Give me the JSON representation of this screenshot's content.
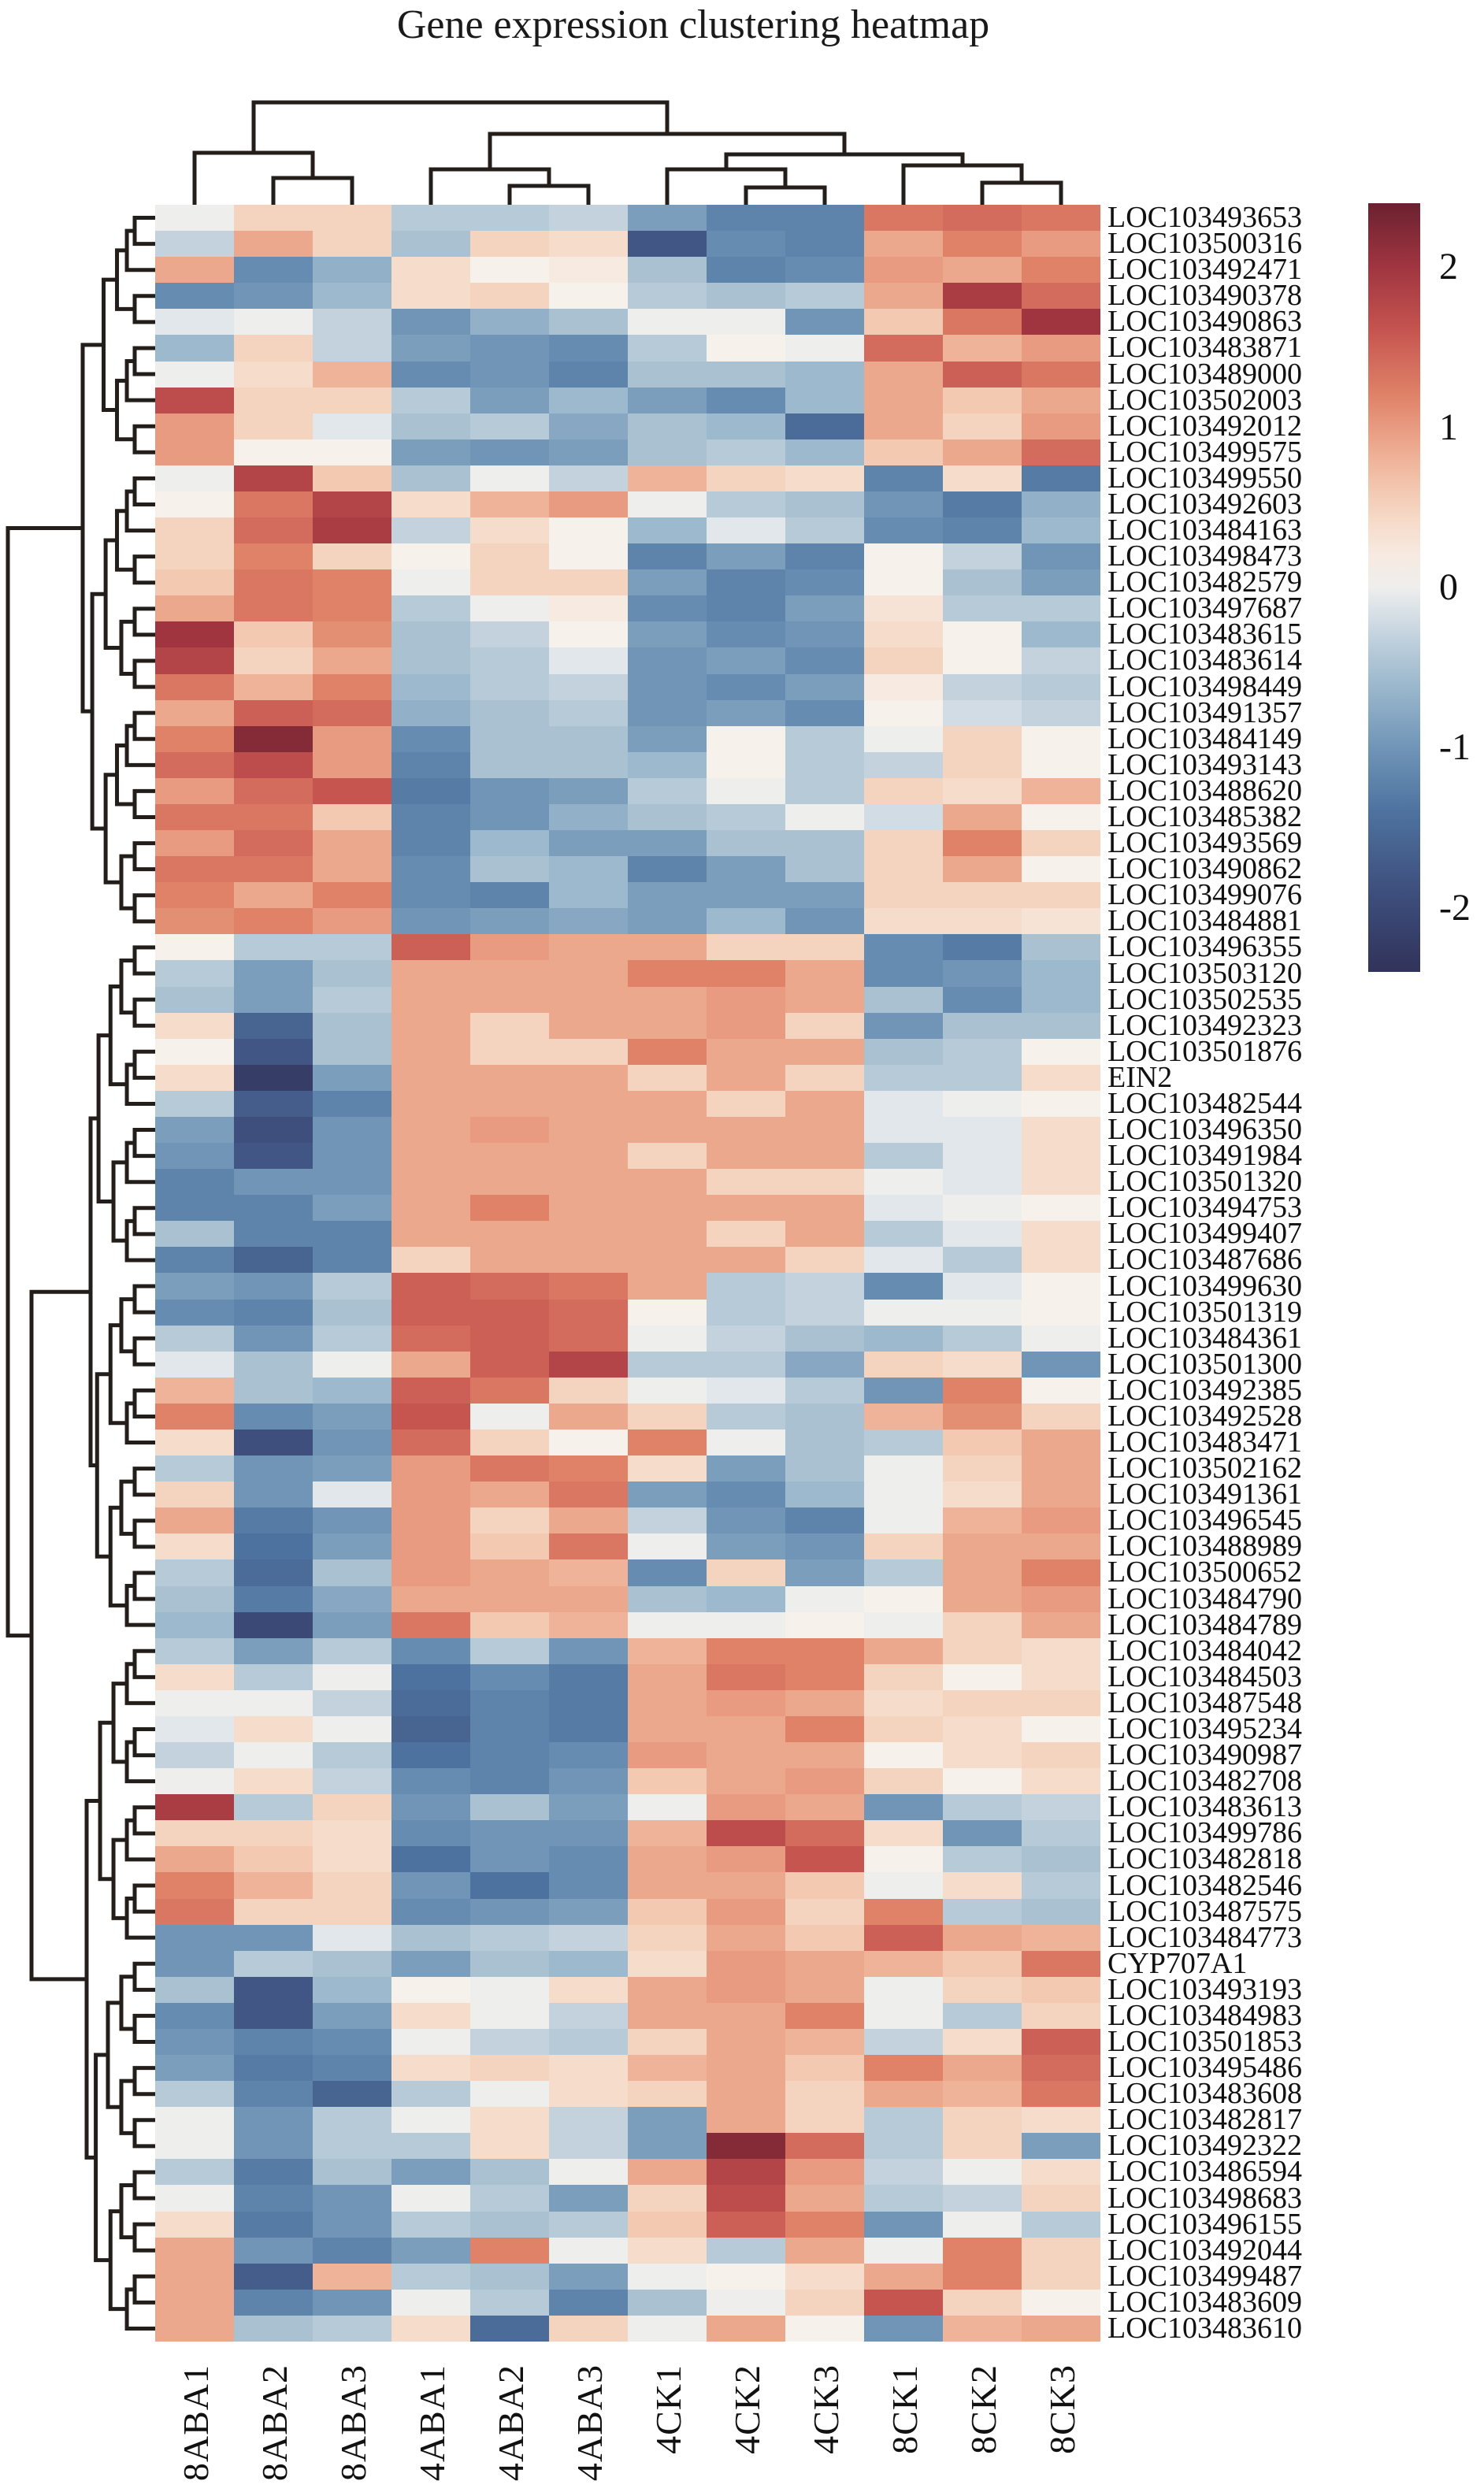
{
  "chart_data": {
    "type": "heatmap",
    "title": "Gene expression clustering heatmap",
    "legend_position": "right",
    "columns": [
      "8ABA1",
      "8ABA2",
      "8ABA3",
      "4ABA1",
      "4ABA2",
      "4ABA3",
      "4CK1",
      "4CK2",
      "4CK3",
      "8CK1",
      "8CK2",
      "8CK3"
    ],
    "rows": [
      "LOC103493653",
      "LOC103500316",
      "LOC103492471",
      "LOC103490378",
      "LOC103490863",
      "LOC103483871",
      "LOC103489000",
      "LOC103502003",
      "LOC103492012",
      "LOC103499575",
      "LOC103499550",
      "LOC103492603",
      "LOC103484163",
      "LOC103498473",
      "LOC103482579",
      "LOC103497687",
      "LOC103483615",
      "LOC103483614",
      "LOC103498449",
      "LOC103491357",
      "LOC103484149",
      "LOC103493143",
      "LOC103488620",
      "LOC103485382",
      "LOC103493569",
      "LOC103490862",
      "LOC103499076",
      "LOC103484881",
      "LOC103496355",
      "LOC103503120",
      "LOC103502535",
      "LOC103492323",
      "LOC103501876",
      "EIN2",
      "LOC103482544",
      "LOC103496350",
      "LOC103491984",
      "LOC103501320",
      "LOC103494753",
      "LOC103499407",
      "LOC103487686",
      "LOC103499630",
      "LOC103501319",
      "LOC103484361",
      "LOC103501300",
      "LOC103492385",
      "LOC103492528",
      "LOC103483471",
      "LOC103502162",
      "LOC103491361",
      "LOC103496545",
      "LOC103488989",
      "LOC103500652",
      "LOC103484790",
      "LOC103484789",
      "LOC103484042",
      "LOC103484503",
      "LOC103487548",
      "LOC103495234",
      "LOC103490987",
      "LOC103482708",
      "LOC103483613",
      "LOC103499786",
      "LOC103482818",
      "LOC103482546",
      "LOC103487575",
      "LOC103484773",
      "CYP707A1",
      "LOC103493193",
      "LOC103484983",
      "LOC103501853",
      "LOC103495486",
      "LOC103483608",
      "LOC103482817",
      "LOC103492322",
      "LOC103486594",
      "LOC103498683",
      "LOC103496155",
      "LOC103492044",
      "LOC103499487",
      "LOC103483609",
      "LOC103483610"
    ],
    "values": [
      [
        0.0,
        0.5,
        0.5,
        -0.4,
        -0.4,
        -0.3,
        -0.9,
        -1.2,
        -1.2,
        1.3,
        1.4,
        1.3
      ],
      [
        -0.3,
        0.9,
        0.5,
        -0.5,
        0.5,
        0.4,
        -1.8,
        -1.1,
        -1.2,
        0.9,
        1.2,
        1.0
      ],
      [
        0.9,
        -1.1,
        -0.7,
        0.4,
        0.1,
        0.2,
        -0.5,
        -1.2,
        -1.1,
        1.0,
        0.9,
        1.2
      ],
      [
        -1.1,
        -1.0,
        -0.6,
        0.4,
        0.5,
        0.1,
        -0.4,
        -0.5,
        -0.4,
        0.9,
        1.9,
        1.4
      ],
      [
        -0.1,
        0.0,
        -0.3,
        -1.0,
        -0.7,
        -0.5,
        0.0,
        0.0,
        -1.0,
        0.6,
        1.3,
        2.0
      ],
      [
        -0.6,
        0.5,
        -0.3,
        -0.9,
        -1.0,
        -1.1,
        -0.4,
        0.1,
        0.0,
        1.4,
        0.8,
        1.0
      ],
      [
        0.0,
        0.4,
        0.8,
        -1.1,
        -1.0,
        -1.2,
        -0.5,
        -0.5,
        -0.6,
        0.9,
        1.5,
        1.3
      ],
      [
        1.7,
        0.5,
        0.5,
        -0.4,
        -0.9,
        -0.6,
        -0.9,
        -1.1,
        -0.6,
        0.9,
        0.6,
        0.9
      ],
      [
        1.0,
        0.5,
        -0.1,
        -0.5,
        -0.4,
        -0.8,
        -0.5,
        -0.6,
        -1.5,
        0.9,
        0.5,
        1.0
      ],
      [
        1.0,
        0.1,
        0.1,
        -0.9,
        -1.0,
        -0.9,
        -0.5,
        -0.4,
        -0.6,
        0.6,
        0.9,
        1.4
      ],
      [
        0.0,
        1.8,
        0.6,
        -0.5,
        0.0,
        -0.3,
        0.8,
        0.5,
        0.4,
        -1.2,
        0.4,
        -1.3
      ],
      [
        0.1,
        1.3,
        1.8,
        0.4,
        0.8,
        1.0,
        0.0,
        -0.4,
        -0.5,
        -1.0,
        -1.3,
        -0.7
      ],
      [
        0.5,
        1.4,
        1.9,
        -0.3,
        0.4,
        0.1,
        -0.6,
        -0.1,
        -0.4,
        -1.1,
        -1.2,
        -0.6
      ],
      [
        0.5,
        1.2,
        0.5,
        0.1,
        0.5,
        0.1,
        -1.2,
        -0.9,
        -1.2,
        0.1,
        -0.3,
        -1.0
      ],
      [
        0.6,
        1.3,
        1.2,
        0.0,
        0.5,
        0.5,
        -0.9,
        -1.2,
        -1.1,
        0.1,
        -0.5,
        -0.9
      ],
      [
        0.9,
        1.3,
        1.2,
        -0.4,
        0.0,
        0.2,
        -1.1,
        -1.2,
        -0.9,
        0.3,
        -0.4,
        -0.4
      ],
      [
        2.0,
        0.6,
        1.1,
        -0.5,
        -0.3,
        0.1,
        -0.9,
        -1.1,
        -1.0,
        0.4,
        0.1,
        -0.6
      ],
      [
        1.8,
        0.5,
        0.9,
        -0.5,
        -0.4,
        -0.1,
        -1.0,
        -0.9,
        -1.1,
        0.5,
        0.1,
        -0.3
      ],
      [
        1.3,
        0.8,
        1.2,
        -0.6,
        -0.4,
        -0.3,
        -1.0,
        -1.1,
        -0.9,
        0.2,
        -0.3,
        -0.4
      ],
      [
        0.9,
        1.5,
        1.4,
        -0.7,
        -0.5,
        -0.4,
        -1.0,
        -0.9,
        -1.1,
        0.1,
        -0.2,
        -0.3
      ],
      [
        1.2,
        2.2,
        1.0,
        -1.1,
        -0.5,
        -0.5,
        -0.9,
        0.1,
        -0.4,
        0.0,
        0.5,
        0.1
      ],
      [
        1.4,
        1.7,
        1.0,
        -1.2,
        -0.5,
        -0.5,
        -0.6,
        0.1,
        -0.4,
        -0.3,
        0.5,
        0.1
      ],
      [
        1.0,
        1.4,
        1.6,
        -1.3,
        -1.0,
        -0.9,
        -0.4,
        0.0,
        -0.4,
        0.5,
        0.4,
        0.8
      ],
      [
        1.3,
        1.3,
        0.6,
        -1.2,
        -1.0,
        -0.7,
        -0.5,
        -0.4,
        0.0,
        -0.2,
        0.9,
        0.1
      ],
      [
        1.0,
        1.4,
        0.9,
        -1.2,
        -0.6,
        -0.9,
        -0.9,
        -0.5,
        -0.5,
        0.5,
        1.2,
        0.5
      ],
      [
        1.3,
        1.3,
        0.9,
        -1.1,
        -0.5,
        -0.6,
        -1.2,
        -0.9,
        -0.5,
        0.5,
        0.9,
        0.1
      ],
      [
        1.2,
        0.9,
        1.2,
        -1.1,
        -1.2,
        -0.6,
        -0.9,
        -0.9,
        -0.9,
        0.5,
        0.5,
        0.5
      ],
      [
        1.1,
        1.2,
        1.0,
        -1.0,
        -0.9,
        -0.8,
        -0.9,
        -0.6,
        -1.0,
        0.4,
        0.4,
        0.3
      ],
      [
        0.1,
        -0.4,
        -0.4,
        1.5,
        1.0,
        0.9,
        0.9,
        0.5,
        0.5,
        -1.1,
        -1.3,
        -0.5
      ],
      [
        -0.4,
        -0.9,
        -0.5,
        0.9,
        0.9,
        0.9,
        1.2,
        1.2,
        0.9,
        -1.1,
        -1.0,
        -0.6
      ],
      [
        -0.5,
        -0.9,
        -0.4,
        0.9,
        0.9,
        0.9,
        0.9,
        1.0,
        0.9,
        -0.5,
        -1.1,
        -0.6
      ],
      [
        0.4,
        -1.6,
        -0.5,
        0.9,
        0.5,
        0.9,
        0.9,
        1.0,
        0.5,
        -1.0,
        -0.5,
        -0.5
      ],
      [
        0.1,
        -1.8,
        -0.5,
        0.9,
        0.5,
        0.5,
        1.2,
        0.9,
        0.9,
        -0.5,
        -0.4,
        0.1
      ],
      [
        0.4,
        -2.2,
        -0.9,
        0.9,
        0.9,
        0.9,
        0.5,
        0.9,
        0.5,
        -0.4,
        -0.4,
        0.4
      ],
      [
        -0.4,
        -1.7,
        -1.2,
        0.9,
        0.9,
        0.9,
        0.9,
        0.5,
        0.9,
        -0.1,
        0.0,
        0.1
      ],
      [
        -0.9,
        -1.9,
        -1.0,
        0.9,
        1.0,
        0.9,
        0.9,
        0.9,
        0.9,
        -0.1,
        -0.1,
        0.4
      ],
      [
        -1.0,
        -1.8,
        -1.0,
        0.9,
        0.9,
        0.9,
        0.5,
        0.9,
        0.9,
        -0.4,
        -0.1,
        0.4
      ],
      [
        -1.2,
        -1.0,
        -1.0,
        0.9,
        0.9,
        0.9,
        0.9,
        0.5,
        0.5,
        0.0,
        -0.1,
        0.4
      ],
      [
        -1.2,
        -1.2,
        -0.9,
        0.9,
        1.2,
        0.9,
        0.9,
        0.9,
        0.9,
        -0.1,
        0.0,
        0.1
      ],
      [
        -0.5,
        -1.2,
        -1.2,
        0.9,
        0.9,
        0.9,
        0.9,
        0.5,
        0.9,
        -0.4,
        -0.1,
        0.4
      ],
      [
        -1.2,
        -1.6,
        -1.2,
        0.5,
        0.9,
        0.9,
        0.9,
        0.9,
        0.5,
        -0.1,
        -0.4,
        0.4
      ],
      [
        -0.9,
        -1.0,
        -0.4,
        1.5,
        1.4,
        1.3,
        0.9,
        -0.4,
        -0.3,
        -1.1,
        -0.1,
        0.1
      ],
      [
        -1.1,
        -1.2,
        -0.5,
        1.5,
        1.5,
        1.4,
        0.1,
        -0.4,
        -0.3,
        0.0,
        0.0,
        0.1
      ],
      [
        -0.4,
        -1.0,
        -0.4,
        1.4,
        1.5,
        1.4,
        0.0,
        -0.3,
        -0.5,
        -0.6,
        -0.4,
        0.0
      ],
      [
        -0.1,
        -0.5,
        0.0,
        0.9,
        1.5,
        1.8,
        -0.4,
        -0.4,
        -0.8,
        0.5,
        0.4,
        -1.0
      ],
      [
        0.8,
        -0.5,
        -0.6,
        1.5,
        1.3,
        0.5,
        0.0,
        -0.1,
        -0.4,
        -1.0,
        1.2,
        0.1
      ],
      [
        1.2,
        -1.1,
        -0.9,
        1.6,
        0.0,
        0.9,
        0.5,
        -0.4,
        -0.5,
        0.8,
        1.1,
        0.5
      ],
      [
        0.4,
        -1.9,
        -1.0,
        1.4,
        0.5,
        0.1,
        1.2,
        0.0,
        -0.5,
        -0.4,
        0.6,
        0.9
      ],
      [
        -0.4,
        -1.0,
        -0.9,
        1.0,
        1.3,
        1.2,
        0.4,
        -0.9,
        -0.5,
        0.0,
        0.5,
        0.9
      ],
      [
        0.5,
        -1.0,
        -0.1,
        1.0,
        0.9,
        1.3,
        -0.9,
        -1.1,
        -0.6,
        0.0,
        0.4,
        0.9
      ],
      [
        0.9,
        -1.3,
        -1.0,
        1.0,
        0.5,
        0.9,
        -0.3,
        -1.0,
        -1.2,
        0.0,
        0.8,
        1.0
      ],
      [
        0.4,
        -1.4,
        -0.9,
        1.0,
        0.6,
        1.3,
        0.0,
        -0.9,
        -1.0,
        0.5,
        0.9,
        0.9
      ],
      [
        -0.4,
        -1.5,
        -0.5,
        1.0,
        0.9,
        0.8,
        -1.1,
        0.5,
        -0.9,
        -0.4,
        0.9,
        1.2
      ],
      [
        -0.5,
        -1.3,
        -0.8,
        0.9,
        0.9,
        0.9,
        -0.5,
        -0.6,
        0.0,
        0.1,
        0.9,
        1.0
      ],
      [
        -0.6,
        -2.0,
        -0.9,
        1.3,
        0.6,
        0.8,
        0.0,
        0.0,
        0.1,
        0.0,
        0.5,
        0.9
      ],
      [
        -0.4,
        -0.9,
        -0.4,
        -1.1,
        -0.4,
        -1.0,
        0.8,
        1.2,
        1.2,
        0.9,
        0.5,
        0.4
      ],
      [
        0.4,
        -0.4,
        0.0,
        -1.4,
        -1.1,
        -1.3,
        0.9,
        1.3,
        1.2,
        0.5,
        0.1,
        0.4
      ],
      [
        0.0,
        0.0,
        -0.3,
        -1.5,
        -1.2,
        -1.3,
        0.9,
        1.0,
        0.9,
        0.4,
        0.5,
        0.5
      ],
      [
        -0.1,
        0.4,
        0.0,
        -1.6,
        -1.2,
        -1.3,
        0.9,
        0.9,
        1.2,
        0.5,
        0.4,
        0.1
      ],
      [
        -0.3,
        0.0,
        -0.4,
        -1.4,
        -1.2,
        -1.1,
        1.0,
        0.9,
        0.9,
        0.1,
        0.4,
        0.5
      ],
      [
        0.0,
        0.4,
        -0.3,
        -1.1,
        -1.2,
        -1.0,
        0.6,
        0.9,
        1.0,
        0.5,
        0.1,
        0.4
      ],
      [
        1.9,
        -0.4,
        0.5,
        -1.0,
        -0.5,
        -0.9,
        0.0,
        1.0,
        0.9,
        -1.0,
        -0.4,
        -0.3
      ],
      [
        0.5,
        0.5,
        0.4,
        -1.1,
        -1.0,
        -1.0,
        0.8,
        1.7,
        1.4,
        0.4,
        -1.0,
        -0.4
      ],
      [
        0.9,
        0.6,
        0.4,
        -1.4,
        -1.0,
        -1.1,
        0.9,
        1.0,
        1.6,
        0.1,
        -0.4,
        -0.5
      ],
      [
        1.2,
        0.8,
        0.5,
        -1.0,
        -1.4,
        -1.1,
        0.9,
        0.9,
        0.6,
        0.0,
        0.4,
        -0.4
      ],
      [
        1.3,
        0.5,
        0.5,
        -1.1,
        -1.0,
        -0.9,
        0.6,
        1.0,
        0.5,
        1.2,
        -0.4,
        -0.5
      ],
      [
        -1.0,
        -1.0,
        -0.1,
        -0.5,
        -0.4,
        -0.3,
        0.5,
        0.9,
        0.6,
        1.5,
        0.9,
        0.8
      ],
      [
        -1.0,
        -0.4,
        -0.5,
        -0.9,
        -0.5,
        -0.6,
        0.4,
        1.0,
        0.9,
        0.8,
        0.6,
        1.3
      ],
      [
        -0.5,
        -1.8,
        -0.6,
        0.1,
        0.0,
        0.4,
        0.9,
        1.0,
        0.9,
        0.0,
        0.5,
        0.6
      ],
      [
        -1.1,
        -1.8,
        -0.9,
        0.4,
        0.0,
        -0.3,
        0.9,
        0.9,
        1.2,
        0.0,
        -0.4,
        0.5
      ],
      [
        -1.0,
        -1.2,
        -1.1,
        0.0,
        -0.3,
        -0.4,
        0.5,
        0.9,
        0.8,
        -0.3,
        0.4,
        1.5
      ],
      [
        -0.9,
        -1.3,
        -1.2,
        0.4,
        0.5,
        0.4,
        0.8,
        0.9,
        0.6,
        1.2,
        0.9,
        1.4
      ],
      [
        -0.4,
        -1.2,
        -1.6,
        -0.4,
        0.0,
        0.4,
        0.5,
        0.9,
        0.5,
        0.9,
        0.8,
        1.3
      ],
      [
        0.0,
        -1.0,
        -0.4,
        0.0,
        0.4,
        -0.3,
        -0.9,
        0.9,
        0.5,
        -0.4,
        0.5,
        0.4
      ],
      [
        0.0,
        -1.0,
        -0.4,
        -0.4,
        0.4,
        -0.3,
        -0.9,
        2.2,
        1.4,
        -0.4,
        0.5,
        -0.9
      ],
      [
        -0.4,
        -1.3,
        -0.5,
        -0.9,
        -0.5,
        0.0,
        0.9,
        1.8,
        1.0,
        -0.3,
        0.0,
        0.4
      ],
      [
        0.0,
        -1.2,
        -1.0,
        0.0,
        -0.4,
        -0.9,
        0.5,
        1.7,
        0.9,
        -0.4,
        -0.3,
        0.5
      ],
      [
        0.4,
        -1.3,
        -1.0,
        -0.4,
        -0.5,
        -0.4,
        0.6,
        1.5,
        1.2,
        -1.0,
        0.0,
        -0.4
      ],
      [
        0.9,
        -1.0,
        -1.2,
        -0.9,
        1.2,
        0.0,
        0.4,
        -0.4,
        0.9,
        0.0,
        1.2,
        0.5
      ],
      [
        0.9,
        -1.7,
        0.8,
        -0.4,
        -0.5,
        -0.9,
        0.0,
        0.1,
        0.4,
        0.9,
        1.2,
        0.5
      ],
      [
        0.9,
        -1.2,
        -1.0,
        0.0,
        -0.4,
        -1.2,
        -0.5,
        0.0,
        0.5,
        1.6,
        0.5,
        0.1
      ],
      [
        0.9,
        -0.5,
        -0.4,
        0.4,
        -1.5,
        0.5,
        0.0,
        0.9,
        0.1,
        -1.0,
        0.8,
        0.9
      ]
    ],
    "colorbar": {
      "tick_labels": [
        "2",
        "1",
        "0",
        "-1",
        "-2"
      ],
      "tick_values": [
        2,
        1,
        0,
        -1,
        -2
      ],
      "vmin": -2.4,
      "vmax": 2.4
    },
    "palette_anchors": [
      [
        -2.4,
        "#31335a"
      ],
      [
        -1.9,
        "#3e4f7d"
      ],
      [
        -1.4,
        "#4e729f"
      ],
      [
        -1.0,
        "#7095b7"
      ],
      [
        -0.6,
        "#9db9cd"
      ],
      [
        -0.3,
        "#c3d2dd"
      ],
      [
        -0.05,
        "#e9ecee"
      ],
      [
        0.1,
        "#f7f1ec"
      ],
      [
        0.45,
        "#f6d9c5"
      ],
      [
        0.85,
        "#eeae93"
      ],
      [
        1.2,
        "#df8268"
      ],
      [
        1.6,
        "#c65550"
      ],
      [
        2.0,
        "#a03540"
      ],
      [
        2.4,
        "#6b2130"
      ]
    ],
    "column_tree": [
      "8ABA1",
      [
        "8ABA2",
        "8ABA3"
      ]
    ],
    "column_tree_full": [
      [
        "8ABA1",
        [
          "8ABA2",
          "8ABA3"
        ]
      ],
      [
        [
          "4ABA1",
          [
            "4ABA2",
            "4ABA3"
          ]
        ],
        [
          [
            "4CK1",
            [
              "4CK2",
              "4CK3"
            ]
          ],
          [
            "8CK1",
            [
              "8CK2",
              "8CK3"
            ]
          ]
        ]
      ]
    ],
    "row_groups": [
      [
        1,
        10
      ],
      [
        11,
        28
      ],
      [
        29,
        41
      ],
      [
        42,
        55
      ],
      [
        56,
        67
      ],
      [
        68,
        82
      ]
    ],
    "dendrogram_color": "#241e1b"
  }
}
